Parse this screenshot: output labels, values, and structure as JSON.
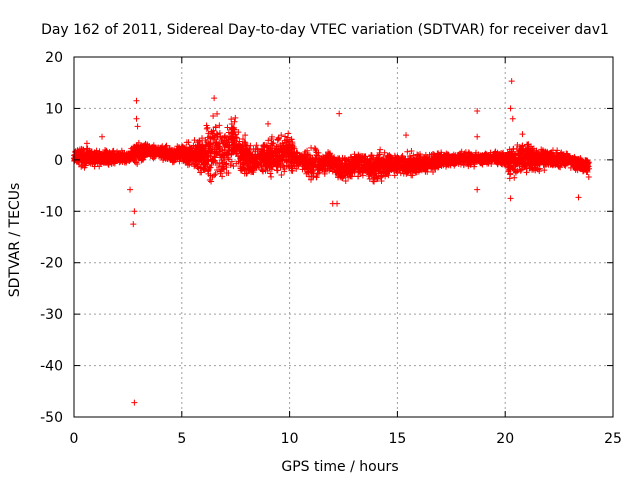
{
  "chart_data": {
    "type": "scatter",
    "title": "Day 162 of 2011, Sidereal Day-to-day VTEC variation (SDTVAR) for receiver dav1",
    "xlabel": "GPS time / hours",
    "ylabel": "SDTVAR / TECUs",
    "xlim": [
      0,
      25
    ],
    "ylim": [
      -50,
      20
    ],
    "xticks": [
      0,
      5,
      10,
      15,
      20,
      25
    ],
    "yticks": [
      20,
      10,
      0,
      -10,
      -20,
      -30,
      -40,
      -50
    ],
    "grid": true,
    "marker": "+",
    "color": "#ff0000",
    "series": [
      {
        "name": "SDTVAR",
        "envelope": [
          {
            "x": 0.0,
            "lo": -1.5,
            "hi": 2.5
          },
          {
            "x": 0.5,
            "lo": -2.0,
            "hi": 3.0
          },
          {
            "x": 1.0,
            "lo": -1.5,
            "hi": 2.0
          },
          {
            "x": 1.5,
            "lo": -1.5,
            "hi": 2.5
          },
          {
            "x": 2.0,
            "lo": -1.0,
            "hi": 2.0
          },
          {
            "x": 2.5,
            "lo": -1.0,
            "hi": 2.0
          },
          {
            "x": 3.0,
            "lo": -1.0,
            "hi": 4.0
          },
          {
            "x": 3.5,
            "lo": 0.0,
            "hi": 3.5
          },
          {
            "x": 4.0,
            "lo": 0.0,
            "hi": 3.0
          },
          {
            "x": 4.5,
            "lo": -1.0,
            "hi": 3.0
          },
          {
            "x": 5.0,
            "lo": -1.0,
            "hi": 3.5
          },
          {
            "x": 5.5,
            "lo": -2.0,
            "hi": 4.0
          },
          {
            "x": 6.0,
            "lo": -5.0,
            "hi": 6.0
          },
          {
            "x": 6.5,
            "lo": -6.0,
            "hi": 11.0
          },
          {
            "x": 7.0,
            "lo": -4.0,
            "hi": 7.0
          },
          {
            "x": 7.3,
            "lo": -3.0,
            "hi": 11.0
          },
          {
            "x": 7.8,
            "lo": -4.0,
            "hi": 6.0
          },
          {
            "x": 8.3,
            "lo": -4.0,
            "hi": 3.0
          },
          {
            "x": 8.8,
            "lo": -3.0,
            "hi": 4.0
          },
          {
            "x": 9.3,
            "lo": -5.0,
            "hi": 6.0
          },
          {
            "x": 10.0,
            "lo": -4.0,
            "hi": 6.0
          },
          {
            "x": 10.5,
            "lo": -2.0,
            "hi": 2.0
          },
          {
            "x": 11.0,
            "lo": -5.0,
            "hi": 3.0
          },
          {
            "x": 11.5,
            "lo": -4.0,
            "hi": 3.0
          },
          {
            "x": 12.0,
            "lo": -3.0,
            "hi": 2.0
          },
          {
            "x": 12.5,
            "lo": -6.0,
            "hi": 2.0
          },
          {
            "x": 13.0,
            "lo": -4.0,
            "hi": 2.0
          },
          {
            "x": 13.5,
            "lo": -4.0,
            "hi": 2.0
          },
          {
            "x": 14.0,
            "lo": -5.0,
            "hi": 1.5
          },
          {
            "x": 14.5,
            "lo": -4.0,
            "hi": 2.0
          },
          {
            "x": 15.0,
            "lo": -3.0,
            "hi": 1.5
          },
          {
            "x": 15.5,
            "lo": -4.0,
            "hi": 2.0
          },
          {
            "x": 16.0,
            "lo": -3.5,
            "hi": 2.0
          },
          {
            "x": 16.5,
            "lo": -3.0,
            "hi": 2.0
          },
          {
            "x": 17.0,
            "lo": -2.0,
            "hi": 2.0
          },
          {
            "x": 17.5,
            "lo": -2.0,
            "hi": 2.0
          },
          {
            "x": 18.0,
            "lo": -1.5,
            "hi": 2.0
          },
          {
            "x": 18.5,
            "lo": -1.5,
            "hi": 1.5
          },
          {
            "x": 19.0,
            "lo": -1.0,
            "hi": 1.5
          },
          {
            "x": 19.5,
            "lo": -1.0,
            "hi": 2.0
          },
          {
            "x": 20.0,
            "lo": -2.0,
            "hi": 2.0
          },
          {
            "x": 20.3,
            "lo": -5.0,
            "hi": 5.0
          },
          {
            "x": 20.8,
            "lo": -3.0,
            "hi": 4.0
          },
          {
            "x": 21.5,
            "lo": -3.0,
            "hi": 3.0
          },
          {
            "x": 22.0,
            "lo": -2.0,
            "hi": 2.5
          },
          {
            "x": 22.5,
            "lo": -2.0,
            "hi": 2.0
          },
          {
            "x": 23.0,
            "lo": -1.5,
            "hi": 1.5
          },
          {
            "x": 23.5,
            "lo": -3.0,
            "hi": 1.0
          },
          {
            "x": 23.9,
            "lo": -4.0,
            "hi": 0.5
          }
        ],
        "outliers": [
          {
            "x": 2.8,
            "y": -47.2
          },
          {
            "x": 2.75,
            "y": -12.5
          },
          {
            "x": 2.8,
            "y": -10.0
          },
          {
            "x": 2.6,
            "y": -5.8
          },
          {
            "x": 2.9,
            "y": 11.5
          },
          {
            "x": 2.9,
            "y": 8.0
          },
          {
            "x": 2.95,
            "y": 6.5
          },
          {
            "x": 1.3,
            "y": 4.5
          },
          {
            "x": 6.5,
            "y": 12.0
          },
          {
            "x": 12.3,
            "y": 9.0
          },
          {
            "x": 12.0,
            "y": -8.5
          },
          {
            "x": 12.2,
            "y": -8.5
          },
          {
            "x": 14.2,
            "y": 2.0
          },
          {
            "x": 15.4,
            "y": 4.8
          },
          {
            "x": 18.7,
            "y": 9.5
          },
          {
            "x": 18.7,
            "y": 4.5
          },
          {
            "x": 18.7,
            "y": -5.8
          },
          {
            "x": 20.3,
            "y": 15.3
          },
          {
            "x": 20.25,
            "y": 10.0
          },
          {
            "x": 20.35,
            "y": 8.0
          },
          {
            "x": 20.8,
            "y": 5.0
          },
          {
            "x": 20.25,
            "y": -7.5
          },
          {
            "x": 23.4,
            "y": -7.3
          },
          {
            "x": 0.6,
            "y": 3.2
          },
          {
            "x": 9.0,
            "y": 7.0
          }
        ]
      }
    ]
  }
}
